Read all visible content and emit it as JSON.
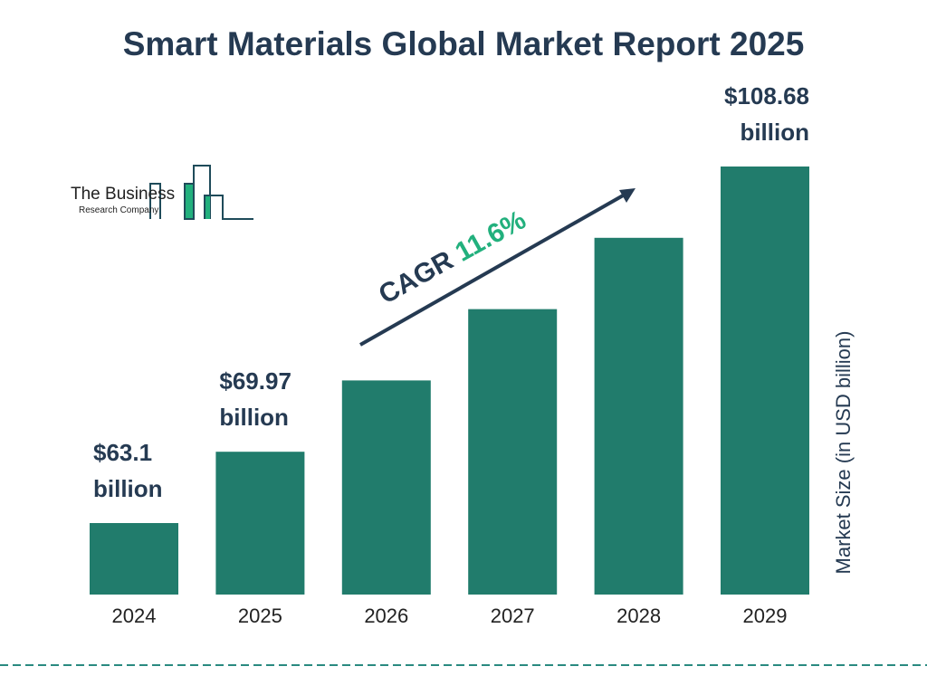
{
  "chart_data": {
    "type": "bar",
    "title": "Smart Materials Global Market Report 2025",
    "categories": [
      "2024",
      "2025",
      "2026",
      "2027",
      "2028",
      "2029"
    ],
    "values": [
      63.1,
      69.97,
      78.09,
      87.15,
      97.26,
      108.68
    ],
    "data_labels": [
      {
        "index": 0,
        "line1": "$63.1",
        "line2": "billion"
      },
      {
        "index": 1,
        "line1": "$69.97",
        "line2": "billion"
      },
      {
        "index": 5,
        "line1": "$108.68",
        "line2": "billion"
      }
    ],
    "ylabel": "Market Size (in USD billion)",
    "xlabel": "",
    "annotation": {
      "label": "CAGR",
      "value": "11.6%"
    },
    "grid": false,
    "colors": {
      "bar": "#217c6c",
      "text": "#253a52",
      "cagr": "#22b07d",
      "divider": "#2a8a80"
    }
  },
  "logo": {
    "line1": "The Business",
    "line2": "Research Company"
  }
}
